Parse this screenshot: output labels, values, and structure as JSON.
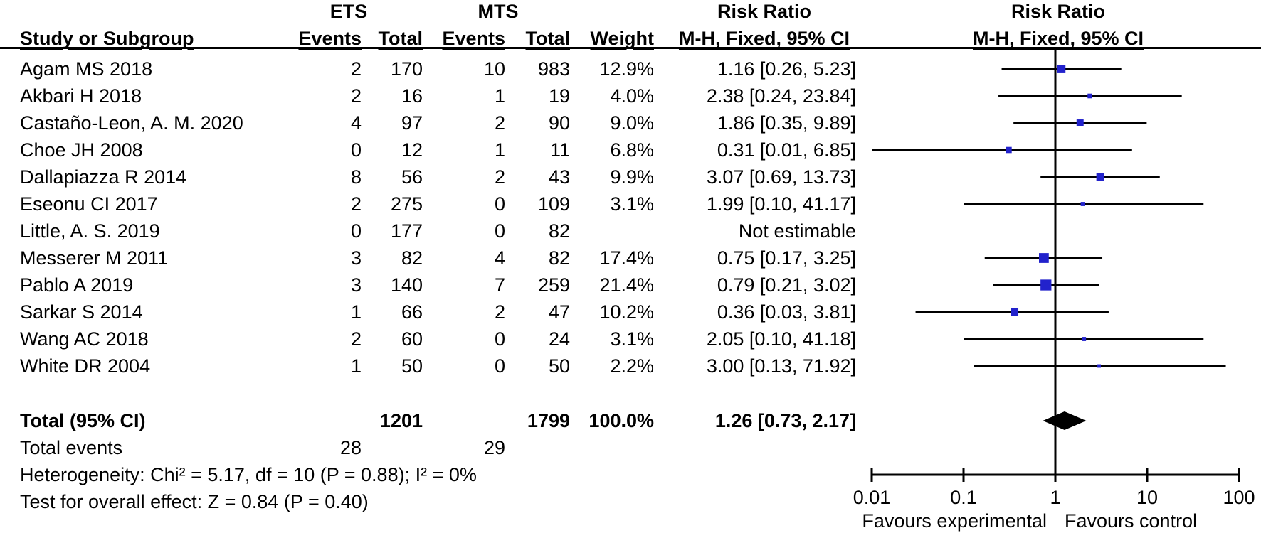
{
  "header": {
    "ets": "ETS",
    "mts": "MTS",
    "risk_ratio_left": "Risk Ratio",
    "risk_ratio_right": "Risk Ratio",
    "study": "Study or Subgroup",
    "ets_events": "Events",
    "ets_total": "Total",
    "mts_events": "Events",
    "mts_total": "Total",
    "weight": "Weight",
    "ci_left": "M-H, Fixed, 95% CI",
    "ci_right": "M-H, Fixed, 95% CI"
  },
  "chart_data": {
    "type": "scatter",
    "variant": "forest-plot",
    "x_scale": "log10",
    "x_range": [
      0.01,
      100
    ],
    "x_ticks": [
      "0.01",
      "0.1",
      "1",
      "10",
      "100"
    ],
    "favours_left": "Favours experimental",
    "favours_right": "Favours control",
    "colors": {
      "marker": "#2222cc",
      "line": "#000000",
      "diamond": "#000000"
    },
    "studies": [
      {
        "study": "Agam MS 2018",
        "ets_events": "2",
        "ets_total": "170",
        "mts_events": "10",
        "mts_total": "983",
        "weight": "12.9%",
        "ci_text": "1.16 [0.26, 5.23]",
        "rr": 1.16,
        "low": 0.26,
        "high": 5.23,
        "weight_pct": 12.9
      },
      {
        "study": "Akbari H 2018",
        "ets_events": "2",
        "ets_total": "16",
        "mts_events": "1",
        "mts_total": "19",
        "weight": "4.0%",
        "ci_text": "2.38 [0.24, 23.84]",
        "rr": 2.38,
        "low": 0.24,
        "high": 23.84,
        "weight_pct": 4.0
      },
      {
        "study": "Castaño-Leon, A. M. 2020",
        "ets_events": "4",
        "ets_total": "97",
        "mts_events": "2",
        "mts_total": "90",
        "weight": "9.0%",
        "ci_text": "1.86 [0.35, 9.89]",
        "rr": 1.86,
        "low": 0.35,
        "high": 9.89,
        "weight_pct": 9.0
      },
      {
        "study": "Choe JH 2008",
        "ets_events": "0",
        "ets_total": "12",
        "mts_events": "1",
        "mts_total": "11",
        "weight": "6.8%",
        "ci_text": "0.31 [0.01, 6.85]",
        "rr": 0.31,
        "low": 0.01,
        "high": 6.85,
        "weight_pct": 6.8
      },
      {
        "study": "Dallapiazza R 2014",
        "ets_events": "8",
        "ets_total": "56",
        "mts_events": "2",
        "mts_total": "43",
        "weight": "9.9%",
        "ci_text": "3.07 [0.69, 13.73]",
        "rr": 3.07,
        "low": 0.69,
        "high": 13.73,
        "weight_pct": 9.9
      },
      {
        "study": "Eseonu CI 2017",
        "ets_events": "2",
        "ets_total": "275",
        "mts_events": "0",
        "mts_total": "109",
        "weight": "3.1%",
        "ci_text": "1.99 [0.10, 41.17]",
        "rr": 1.99,
        "low": 0.1,
        "high": 41.17,
        "weight_pct": 3.1
      },
      {
        "study": "Little, A. S. 2019",
        "ets_events": "0",
        "ets_total": "177",
        "mts_events": "0",
        "mts_total": "82",
        "weight": "",
        "ci_text": "Not estimable",
        "rr": null,
        "low": null,
        "high": null,
        "weight_pct": null
      },
      {
        "study": "Messerer M 2011",
        "ets_events": "3",
        "ets_total": "82",
        "mts_events": "4",
        "mts_total": "82",
        "weight": "17.4%",
        "ci_text": "0.75 [0.17, 3.25]",
        "rr": 0.75,
        "low": 0.17,
        "high": 3.25,
        "weight_pct": 17.4
      },
      {
        "study": "Pablo A 2019",
        "ets_events": "3",
        "ets_total": "140",
        "mts_events": "7",
        "mts_total": "259",
        "weight": "21.4%",
        "ci_text": "0.79 [0.21, 3.02]",
        "rr": 0.79,
        "low": 0.21,
        "high": 3.02,
        "weight_pct": 21.4
      },
      {
        "study": "Sarkar S 2014",
        "ets_events": "1",
        "ets_total": "66",
        "mts_events": "2",
        "mts_total": "47",
        "weight": "10.2%",
        "ci_text": "0.36 [0.03, 3.81]",
        "rr": 0.36,
        "low": 0.03,
        "high": 3.81,
        "weight_pct": 10.2
      },
      {
        "study": "Wang AC 2018",
        "ets_events": "2",
        "ets_total": "60",
        "mts_events": "0",
        "mts_total": "24",
        "weight": "3.1%",
        "ci_text": "2.05 [0.10, 41.18]",
        "rr": 2.05,
        "low": 0.1,
        "high": 41.18,
        "weight_pct": 3.1
      },
      {
        "study": "White DR 2004",
        "ets_events": "1",
        "ets_total": "50",
        "mts_events": "0",
        "mts_total": "50",
        "weight": "2.2%",
        "ci_text": "3.00 [0.13, 71.92]",
        "rr": 3.0,
        "low": 0.13,
        "high": 71.92,
        "weight_pct": 2.2
      }
    ],
    "total": {
      "label": "Total (95% CI)",
      "ets_total": "1201",
      "mts_total": "1799",
      "weight": "100.0%",
      "ci_text": "1.26 [0.73, 2.17]",
      "rr": 1.26,
      "low": 0.73,
      "high": 2.17
    },
    "total_events": {
      "label": "Total events",
      "ets": "28",
      "mts": "29"
    },
    "heterogeneity": "Heterogeneity: Chi² = 5.17, df = 10 (P = 0.88); I² = 0%",
    "overall_effect": "Test for overall effect: Z = 0.84 (P = 0.40)"
  }
}
